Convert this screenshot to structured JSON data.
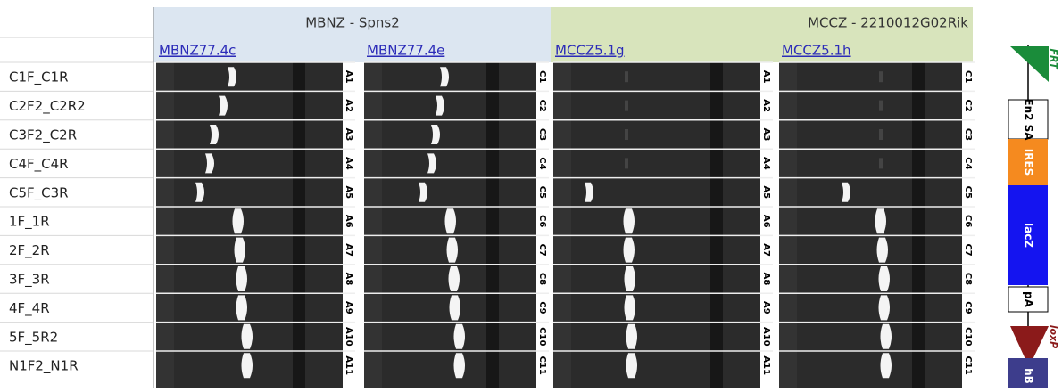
{
  "header": {
    "groups": [
      "MBNZ - Spns2",
      "MCCZ - 2210012G02Rik"
    ],
    "samples": [
      "MBNZ77.4c",
      "MBNZ77.4e",
      "MCCZ5.1g",
      "MCCZ5.1h"
    ]
  },
  "rows": [
    "C1F_C1R",
    "C2F2_C2R2",
    "C3F2_C2R",
    "C4F_C4R",
    "C5F_C3R",
    "1F_1R",
    "2F_2R",
    "3F_3R",
    "4F_4R",
    "5F_5R2",
    "N1F2_N1R"
  ],
  "lane_labels": [
    [
      "A1",
      "A2",
      "A3",
      "A4",
      "A5",
      "A6",
      "A7",
      "A8",
      "A9",
      "A10",
      "A11"
    ],
    [
      "C1",
      "C2",
      "C3",
      "C4",
      "C5",
      "C6",
      "C7",
      "C8",
      "C9",
      "C10",
      "C11"
    ],
    [
      "A1",
      "A2",
      "A3",
      "A4",
      "A5",
      "A6",
      "A7",
      "A8",
      "A9",
      "A10",
      "A11"
    ],
    [
      "C1",
      "C2",
      "C3",
      "C4",
      "C5",
      "C6",
      "C7",
      "C8",
      "C9",
      "C10",
      "C11"
    ]
  ],
  "cassette": {
    "labels": [
      "FRT",
      "En2 SA",
      "IRES",
      "lacZ",
      "pA",
      "loxP",
      "hB"
    ]
  }
}
